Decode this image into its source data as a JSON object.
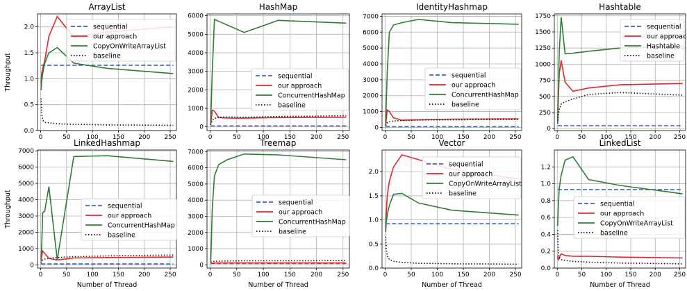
{
  "figure": {
    "xlabel": "Number of Thread",
    "ylabel": "Throughput"
  },
  "chart_data": [
    {
      "type": "line",
      "title": "ArrayList",
      "xlim": [
        -6,
        262
      ],
      "ylim": [
        0,
        2.25
      ],
      "xticks": [
        0,
        50,
        100,
        150,
        200,
        250
      ],
      "yticks": [
        0.0,
        0.5,
        1.0,
        1.5,
        2.0
      ],
      "ytick_labels": [
        "0.0",
        "0.5",
        "1.0",
        "1.5",
        "2.0"
      ],
      "grid": true,
      "legend": "top-right",
      "series": [
        {
          "name": "sequential",
          "color": "#4060b0",
          "style": "dashed",
          "x": [
            1,
            256
          ],
          "y": [
            1.26,
            1.26
          ]
        },
        {
          "name": "our approach",
          "color": "#e0262b",
          "style": "solid",
          "x": [
            1,
            2,
            4,
            8,
            16,
            32,
            64,
            128,
            256
          ],
          "y": [
            0.9,
            1.1,
            1.2,
            1.35,
            1.82,
            2.2,
            1.8,
            1.9,
            2.0
          ]
        },
        {
          "name": "CopyOnWriteArrayList",
          "color": "#2e7d32",
          "style": "solid",
          "x": [
            1,
            2,
            4,
            8,
            16,
            32,
            64,
            128,
            256
          ],
          "y": [
            0.78,
            0.95,
            1.1,
            1.3,
            1.5,
            1.6,
            1.3,
            1.2,
            1.1
          ]
        },
        {
          "name": "baseline",
          "color": "#111111",
          "style": "dotted",
          "x": [
            1,
            2,
            4,
            8,
            16,
            32,
            64,
            128,
            256
          ],
          "y": [
            0.62,
            0.32,
            0.2,
            0.16,
            0.15,
            0.13,
            0.12,
            0.11,
            0.1
          ]
        }
      ]
    },
    {
      "type": "line",
      "title": "HashMap",
      "xlim": [
        -6,
        262
      ],
      "ylim": [
        -200,
        6100
      ],
      "xticks": [
        0,
        50,
        100,
        150,
        200,
        250
      ],
      "yticks": [
        0,
        1000,
        2000,
        3000,
        4000,
        5000,
        6000
      ],
      "ytick_labels": [
        "0",
        "1000",
        "2000",
        "3000",
        "4000",
        "5000",
        "6000"
      ],
      "grid": true,
      "legend": "center-right",
      "series": [
        {
          "name": "sequential",
          "color": "#4060b0",
          "style": "dashed",
          "x": [
            1,
            256
          ],
          "y": [
            50,
            50
          ]
        },
        {
          "name": "our approach",
          "color": "#e0262b",
          "style": "solid",
          "x": [
            1,
            2,
            4,
            8,
            16,
            32,
            64,
            128,
            256
          ],
          "y": [
            150,
            400,
            900,
            850,
            500,
            480,
            470,
            500,
            520
          ]
        },
        {
          "name": "ConcurrentHashMap",
          "color": "#2e7d32",
          "style": "solid",
          "x": [
            1,
            2,
            4,
            8,
            16,
            32,
            64,
            128,
            256
          ],
          "y": [
            300,
            1200,
            3000,
            5800,
            5700,
            5500,
            5100,
            5750,
            5600
          ]
        },
        {
          "name": "baseline",
          "color": "#111111",
          "style": "dotted",
          "x": [
            1,
            2,
            4,
            8,
            16,
            32,
            64,
            128,
            256
          ],
          "y": [
            100,
            200,
            350,
            450,
            520,
            540,
            520,
            560,
            600
          ]
        }
      ]
    },
    {
      "type": "line",
      "title": "IdentityHashmap",
      "xlim": [
        -6,
        262
      ],
      "ylim": [
        -200,
        7150
      ],
      "xticks": [
        0,
        50,
        100,
        150,
        200,
        250
      ],
      "yticks": [
        0,
        1000,
        2000,
        3000,
        4000,
        5000,
        6000,
        7000
      ],
      "ytick_labels": [
        "0",
        "1000",
        "2000",
        "3000",
        "4000",
        "5000",
        "6000",
        "7000"
      ],
      "grid": true,
      "legend": "center",
      "series": [
        {
          "name": "sequential",
          "color": "#4060b0",
          "style": "dashed",
          "x": [
            1,
            256
          ],
          "y": [
            50,
            50
          ]
        },
        {
          "name": "our approach",
          "color": "#e0262b",
          "style": "solid",
          "x": [
            1,
            2,
            4,
            8,
            16,
            32,
            64,
            128,
            256
          ],
          "y": [
            150,
            500,
            1100,
            1000,
            600,
            450,
            480,
            520,
            540
          ]
        },
        {
          "name": "ConcurrentHashMap",
          "color": "#2e7d32",
          "style": "solid",
          "x": [
            1,
            2,
            4,
            8,
            16,
            32,
            64,
            128,
            256
          ],
          "y": [
            300,
            1500,
            3500,
            6000,
            6450,
            6600,
            6800,
            6600,
            6500
          ]
        },
        {
          "name": "baseline",
          "color": "#111111",
          "style": "dotted",
          "x": [
            1,
            2,
            4,
            8,
            16,
            32,
            64,
            128,
            256
          ],
          "y": [
            100,
            200,
            300,
            350,
            400,
            430,
            460,
            480,
            500
          ]
        }
      ]
    },
    {
      "type": "line",
      "title": "Hashtable",
      "xlim": [
        -6,
        262
      ],
      "ylim": [
        -30,
        1780
      ],
      "xticks": [
        0,
        50,
        100,
        150,
        200,
        250
      ],
      "yticks": [
        0,
        250,
        500,
        750,
        1000,
        1250,
        1500,
        1750
      ],
      "ytick_labels": [
        "0",
        "250",
        "500",
        "750",
        "1000",
        "1250",
        "1500",
        "1750"
      ],
      "grid": true,
      "legend": "top-right",
      "series": [
        {
          "name": "sequential",
          "color": "#4060b0",
          "style": "dashed",
          "x": [
            1,
            256
          ],
          "y": [
            45,
            45
          ]
        },
        {
          "name": "our approach",
          "color": "#e0262b",
          "style": "solid",
          "x": [
            1,
            2,
            4,
            8,
            16,
            32,
            64,
            128,
            256
          ],
          "y": [
            120,
            400,
            850,
            1060,
            720,
            580,
            630,
            680,
            700
          ]
        },
        {
          "name": "Hashtable",
          "color": "#2e7d32",
          "style": "solid",
          "x": [
            1,
            2,
            4,
            8,
            16,
            32,
            64,
            128,
            256
          ],
          "y": [
            100,
            500,
            1200,
            1730,
            1160,
            1170,
            1200,
            1250,
            1280
          ]
        },
        {
          "name": "baseline",
          "color": "#111111",
          "style": "dotted",
          "x": [
            1,
            2,
            4,
            8,
            16,
            32,
            64,
            128,
            256
          ],
          "y": [
            80,
            200,
            300,
            380,
            420,
            460,
            530,
            560,
            520
          ]
        }
      ]
    },
    {
      "type": "line",
      "title": "LinkedHashmap",
      "xlim": [
        -6,
        262
      ],
      "ylim": [
        -200,
        7050
      ],
      "xticks": [
        0,
        50,
        100,
        150,
        200,
        250
      ],
      "yticks": [
        0,
        1000,
        2000,
        3000,
        4000,
        5000,
        6000,
        7000
      ],
      "ytick_labels": [
        "0",
        "1000",
        "2000",
        "3000",
        "4000",
        "5000",
        "6000",
        "7000"
      ],
      "grid": true,
      "legend": "center-right",
      "series": [
        {
          "name": "sequential",
          "color": "#4060b0",
          "style": "dashed",
          "x": [
            1,
            256
          ],
          "y": [
            50,
            50
          ]
        },
        {
          "name": "our approach",
          "color": "#e0262b",
          "style": "solid",
          "x": [
            1,
            2,
            4,
            8,
            16,
            32,
            64,
            128,
            256
          ],
          "y": [
            200,
            500,
            850,
            700,
            400,
            300,
            420,
            450,
            480
          ]
        },
        {
          "name": "ConcurrentHashMap",
          "color": "#2e7d32",
          "style": "solid",
          "x": [
            1,
            2,
            4,
            8,
            16,
            32,
            64,
            128,
            256
          ],
          "y": [
            300,
            1200,
            3200,
            3300,
            4800,
            300,
            6650,
            6700,
            6350
          ]
        },
        {
          "name": "baseline",
          "color": "#111111",
          "style": "dotted",
          "x": [
            1,
            2,
            4,
            8,
            16,
            32,
            64,
            128,
            256
          ],
          "y": [
            100,
            200,
            300,
            350,
            400,
            450,
            500,
            550,
            600
          ]
        }
      ]
    },
    {
      "type": "line",
      "title": "Treemap",
      "xlim": [
        -6,
        262
      ],
      "ylim": [
        -200,
        7100
      ],
      "xticks": [
        0,
        50,
        100,
        150,
        200,
        250
      ],
      "yticks": [
        0,
        1000,
        2000,
        3000,
        4000,
        5000,
        6000,
        7000
      ],
      "ytick_labels": [
        "0",
        "1000",
        "2000",
        "3000",
        "4000",
        "5000",
        "6000",
        "7000"
      ],
      "grid": true,
      "legend": "center-right",
      "series": [
        {
          "name": "sequential",
          "color": "#4060b0",
          "style": "dashed",
          "x": [
            1,
            256
          ],
          "y": [
            80,
            80
          ]
        },
        {
          "name": "our approach",
          "color": "#e0262b",
          "style": "solid",
          "x": [
            1,
            2,
            4,
            8,
            16,
            32,
            64,
            128,
            256
          ],
          "y": [
            80,
            90,
            100,
            110,
            120,
            120,
            120,
            120,
            120
          ]
        },
        {
          "name": "ConcurrentHashMap",
          "color": "#2e7d32",
          "style": "solid",
          "x": [
            1,
            2,
            4,
            8,
            16,
            32,
            64,
            128,
            256
          ],
          "y": [
            200,
            1200,
            3500,
            5500,
            6200,
            6500,
            6850,
            6800,
            6500
          ]
        },
        {
          "name": "baseline",
          "color": "#111111",
          "style": "dotted",
          "x": [
            1,
            2,
            4,
            8,
            16,
            32,
            64,
            128,
            256
          ],
          "y": [
            150,
            180,
            200,
            220,
            230,
            240,
            250,
            250,
            260
          ]
        }
      ]
    },
    {
      "type": "line",
      "title": "Vector",
      "xlim": [
        -6,
        262
      ],
      "ylim": [
        0,
        2.45
      ],
      "xticks": [
        0,
        50,
        100,
        150,
        200,
        250
      ],
      "yticks": [
        0.0,
        0.5,
        1.0,
        1.5,
        2.0
      ],
      "ytick_labels": [
        "0.0",
        "0.5",
        "1.0",
        "1.5",
        "2.0"
      ],
      "grid": true,
      "legend": "top-right",
      "series": [
        {
          "name": "sequential",
          "color": "#4060b0",
          "style": "dashed",
          "x": [
            1,
            256
          ],
          "y": [
            0.92,
            0.92
          ]
        },
        {
          "name": "our approach",
          "color": "#e0262b",
          "style": "solid",
          "x": [
            1,
            2,
            4,
            8,
            16,
            32,
            64,
            128,
            256
          ],
          "y": [
            0.85,
            1.1,
            1.5,
            1.8,
            2.1,
            2.35,
            2.25,
            2.05,
            1.85
          ]
        },
        {
          "name": "CopyOnWriteArrayList",
          "color": "#2e7d32",
          "style": "solid",
          "x": [
            1,
            2,
            4,
            8,
            16,
            32,
            64,
            128,
            256
          ],
          "y": [
            0.75,
            0.95,
            1.1,
            1.3,
            1.53,
            1.55,
            1.35,
            1.2,
            1.1
          ]
        },
        {
          "name": "baseline",
          "color": "#111111",
          "style": "dotted",
          "x": [
            1,
            2,
            4,
            8,
            16,
            32,
            64,
            128,
            256
          ],
          "y": [
            0.65,
            0.4,
            0.25,
            0.18,
            0.14,
            0.12,
            0.1,
            0.09,
            0.08
          ]
        }
      ]
    },
    {
      "type": "line",
      "title": "LinkedList",
      "xlim": [
        -6,
        262
      ],
      "ylim": [
        0,
        1.4
      ],
      "xticks": [
        0,
        50,
        100,
        150,
        200,
        250
      ],
      "yticks": [
        0.0,
        0.2,
        0.4,
        0.6,
        0.8,
        1.0,
        1.2
      ],
      "ytick_labels": [
        "0.0",
        "0.2",
        "0.4",
        "0.6",
        "0.8",
        "1.0",
        "1.2"
      ],
      "grid": true,
      "legend": "center-right",
      "series": [
        {
          "name": "sequential",
          "color": "#4060b0",
          "style": "dashed",
          "x": [
            1,
            256
          ],
          "y": [
            0.93,
            0.93
          ]
        },
        {
          "name": "our approach",
          "color": "#e0262b",
          "style": "solid",
          "x": [
            1,
            2,
            4,
            8,
            16,
            32,
            64,
            128,
            256
          ],
          "y": [
            0.15,
            0.1,
            0.12,
            0.17,
            0.15,
            0.14,
            0.14,
            0.13,
            0.12
          ]
        },
        {
          "name": "CopyOnWriteArrayList",
          "color": "#2e7d32",
          "style": "solid",
          "x": [
            1,
            2,
            4,
            8,
            16,
            32,
            64,
            128,
            256
          ],
          "y": [
            0.5,
            0.7,
            0.95,
            1.1,
            1.28,
            1.32,
            1.05,
            0.98,
            0.88
          ]
        },
        {
          "name": "baseline",
          "color": "#111111",
          "style": "dotted",
          "x": [
            1,
            2,
            4,
            8,
            16,
            32,
            64,
            128,
            256
          ],
          "y": [
            0.45,
            0.2,
            0.12,
            0.1,
            0.09,
            0.08,
            0.07,
            0.06,
            0.05
          ]
        }
      ]
    }
  ]
}
